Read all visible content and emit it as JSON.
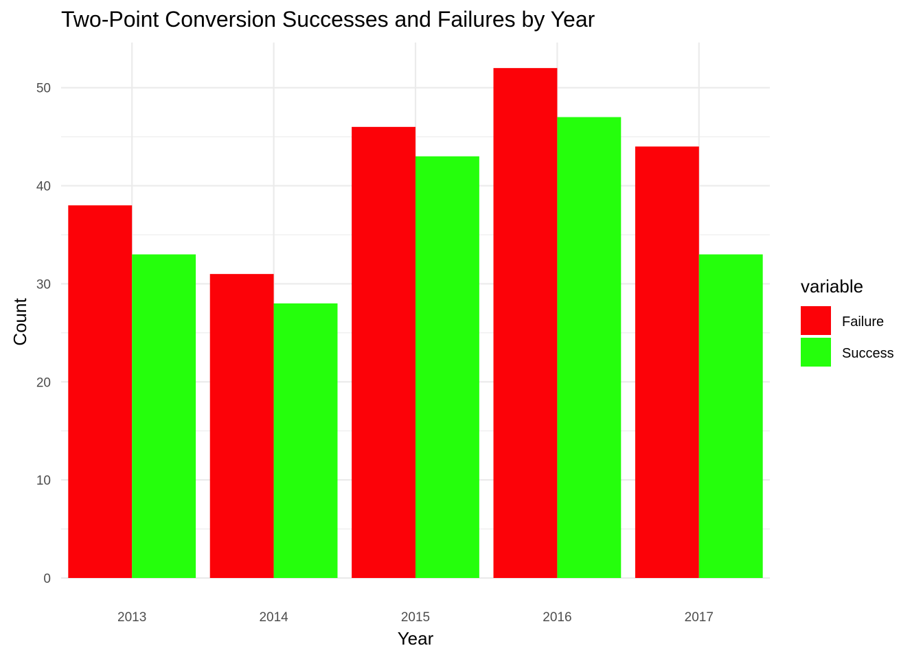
{
  "chart_data": {
    "type": "bar",
    "title": "Two-Point Conversion Successes and Failures by Year",
    "xlabel": "Year",
    "ylabel": "Count",
    "categories": [
      "2013",
      "2014",
      "2015",
      "2016",
      "2017"
    ],
    "series": [
      {
        "name": "Failure",
        "color": "#fc0208",
        "values": [
          38,
          31,
          46,
          52,
          44
        ]
      },
      {
        "name": "Success",
        "color": "#25ff0c",
        "values": [
          33,
          28,
          43,
          47,
          33
        ]
      }
    ],
    "ylim": [
      0,
      54.6
    ],
    "yticks": [
      "0",
      "10",
      "20",
      "30",
      "40",
      "50"
    ],
    "grid": true,
    "legend": {
      "title": "variable",
      "position": "right"
    }
  }
}
